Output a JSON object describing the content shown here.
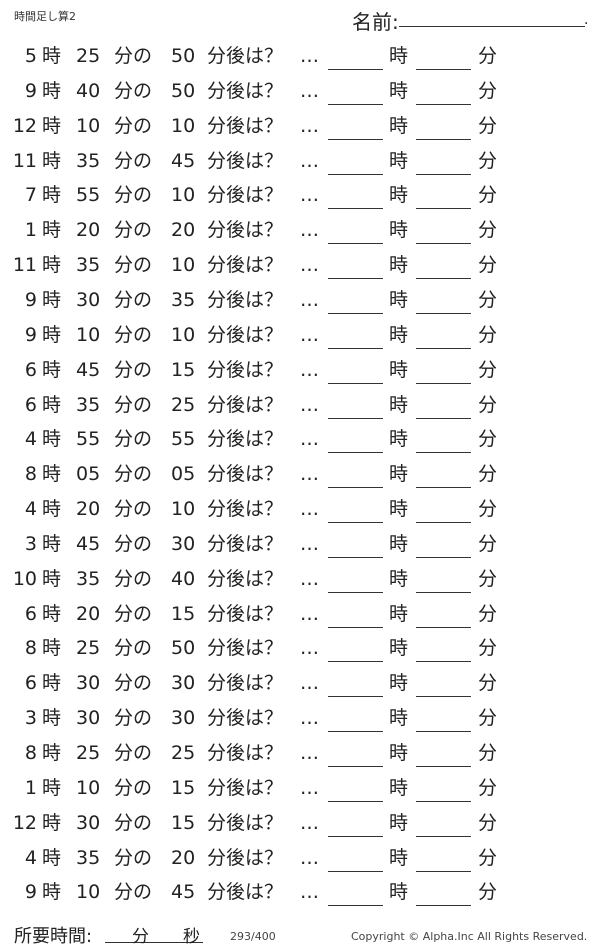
{
  "header": {
    "title": "時間足し算2",
    "name_label": "名前:",
    "name_end": "."
  },
  "labels": {
    "hour": "時",
    "min_of": "分の",
    "after": "分後は？",
    "dots": "…",
    "ans_hour": "時",
    "ans_min": "分"
  },
  "problems": [
    {
      "h": "5",
      "m": "25",
      "a": "50"
    },
    {
      "h": "9",
      "m": "40",
      "a": "50"
    },
    {
      "h": "12",
      "m": "10",
      "a": "10"
    },
    {
      "h": "11",
      "m": "35",
      "a": "45"
    },
    {
      "h": "7",
      "m": "55",
      "a": "10"
    },
    {
      "h": "1",
      "m": "20",
      "a": "20"
    },
    {
      "h": "11",
      "m": "35",
      "a": "10"
    },
    {
      "h": "9",
      "m": "30",
      "a": "35"
    },
    {
      "h": "9",
      "m": "10",
      "a": "10"
    },
    {
      "h": "6",
      "m": "45",
      "a": "15"
    },
    {
      "h": "6",
      "m": "35",
      "a": "25"
    },
    {
      "h": "4",
      "m": "55",
      "a": "55"
    },
    {
      "h": "8",
      "m": "05",
      "a": "05"
    },
    {
      "h": "4",
      "m": "20",
      "a": "10"
    },
    {
      "h": "3",
      "m": "45",
      "a": "30"
    },
    {
      "h": "10",
      "m": "35",
      "a": "40"
    },
    {
      "h": "6",
      "m": "20",
      "a": "15"
    },
    {
      "h": "8",
      "m": "25",
      "a": "50"
    },
    {
      "h": "6",
      "m": "30",
      "a": "30"
    },
    {
      "h": "3",
      "m": "30",
      "a": "30"
    },
    {
      "h": "8",
      "m": "25",
      "a": "25"
    },
    {
      "h": "1",
      "m": "10",
      "a": "15"
    },
    {
      "h": "12",
      "m": "30",
      "a": "15"
    },
    {
      "h": "4",
      "m": "35",
      "a": "20"
    },
    {
      "h": "9",
      "m": "10",
      "a": "45"
    }
  ],
  "footer": {
    "time_label": "所要時間:",
    "min": "分",
    "sec": "秒",
    "page": "293/400",
    "copyright": "Copyright ©  Alpha.Inc All Rights Reserved."
  }
}
